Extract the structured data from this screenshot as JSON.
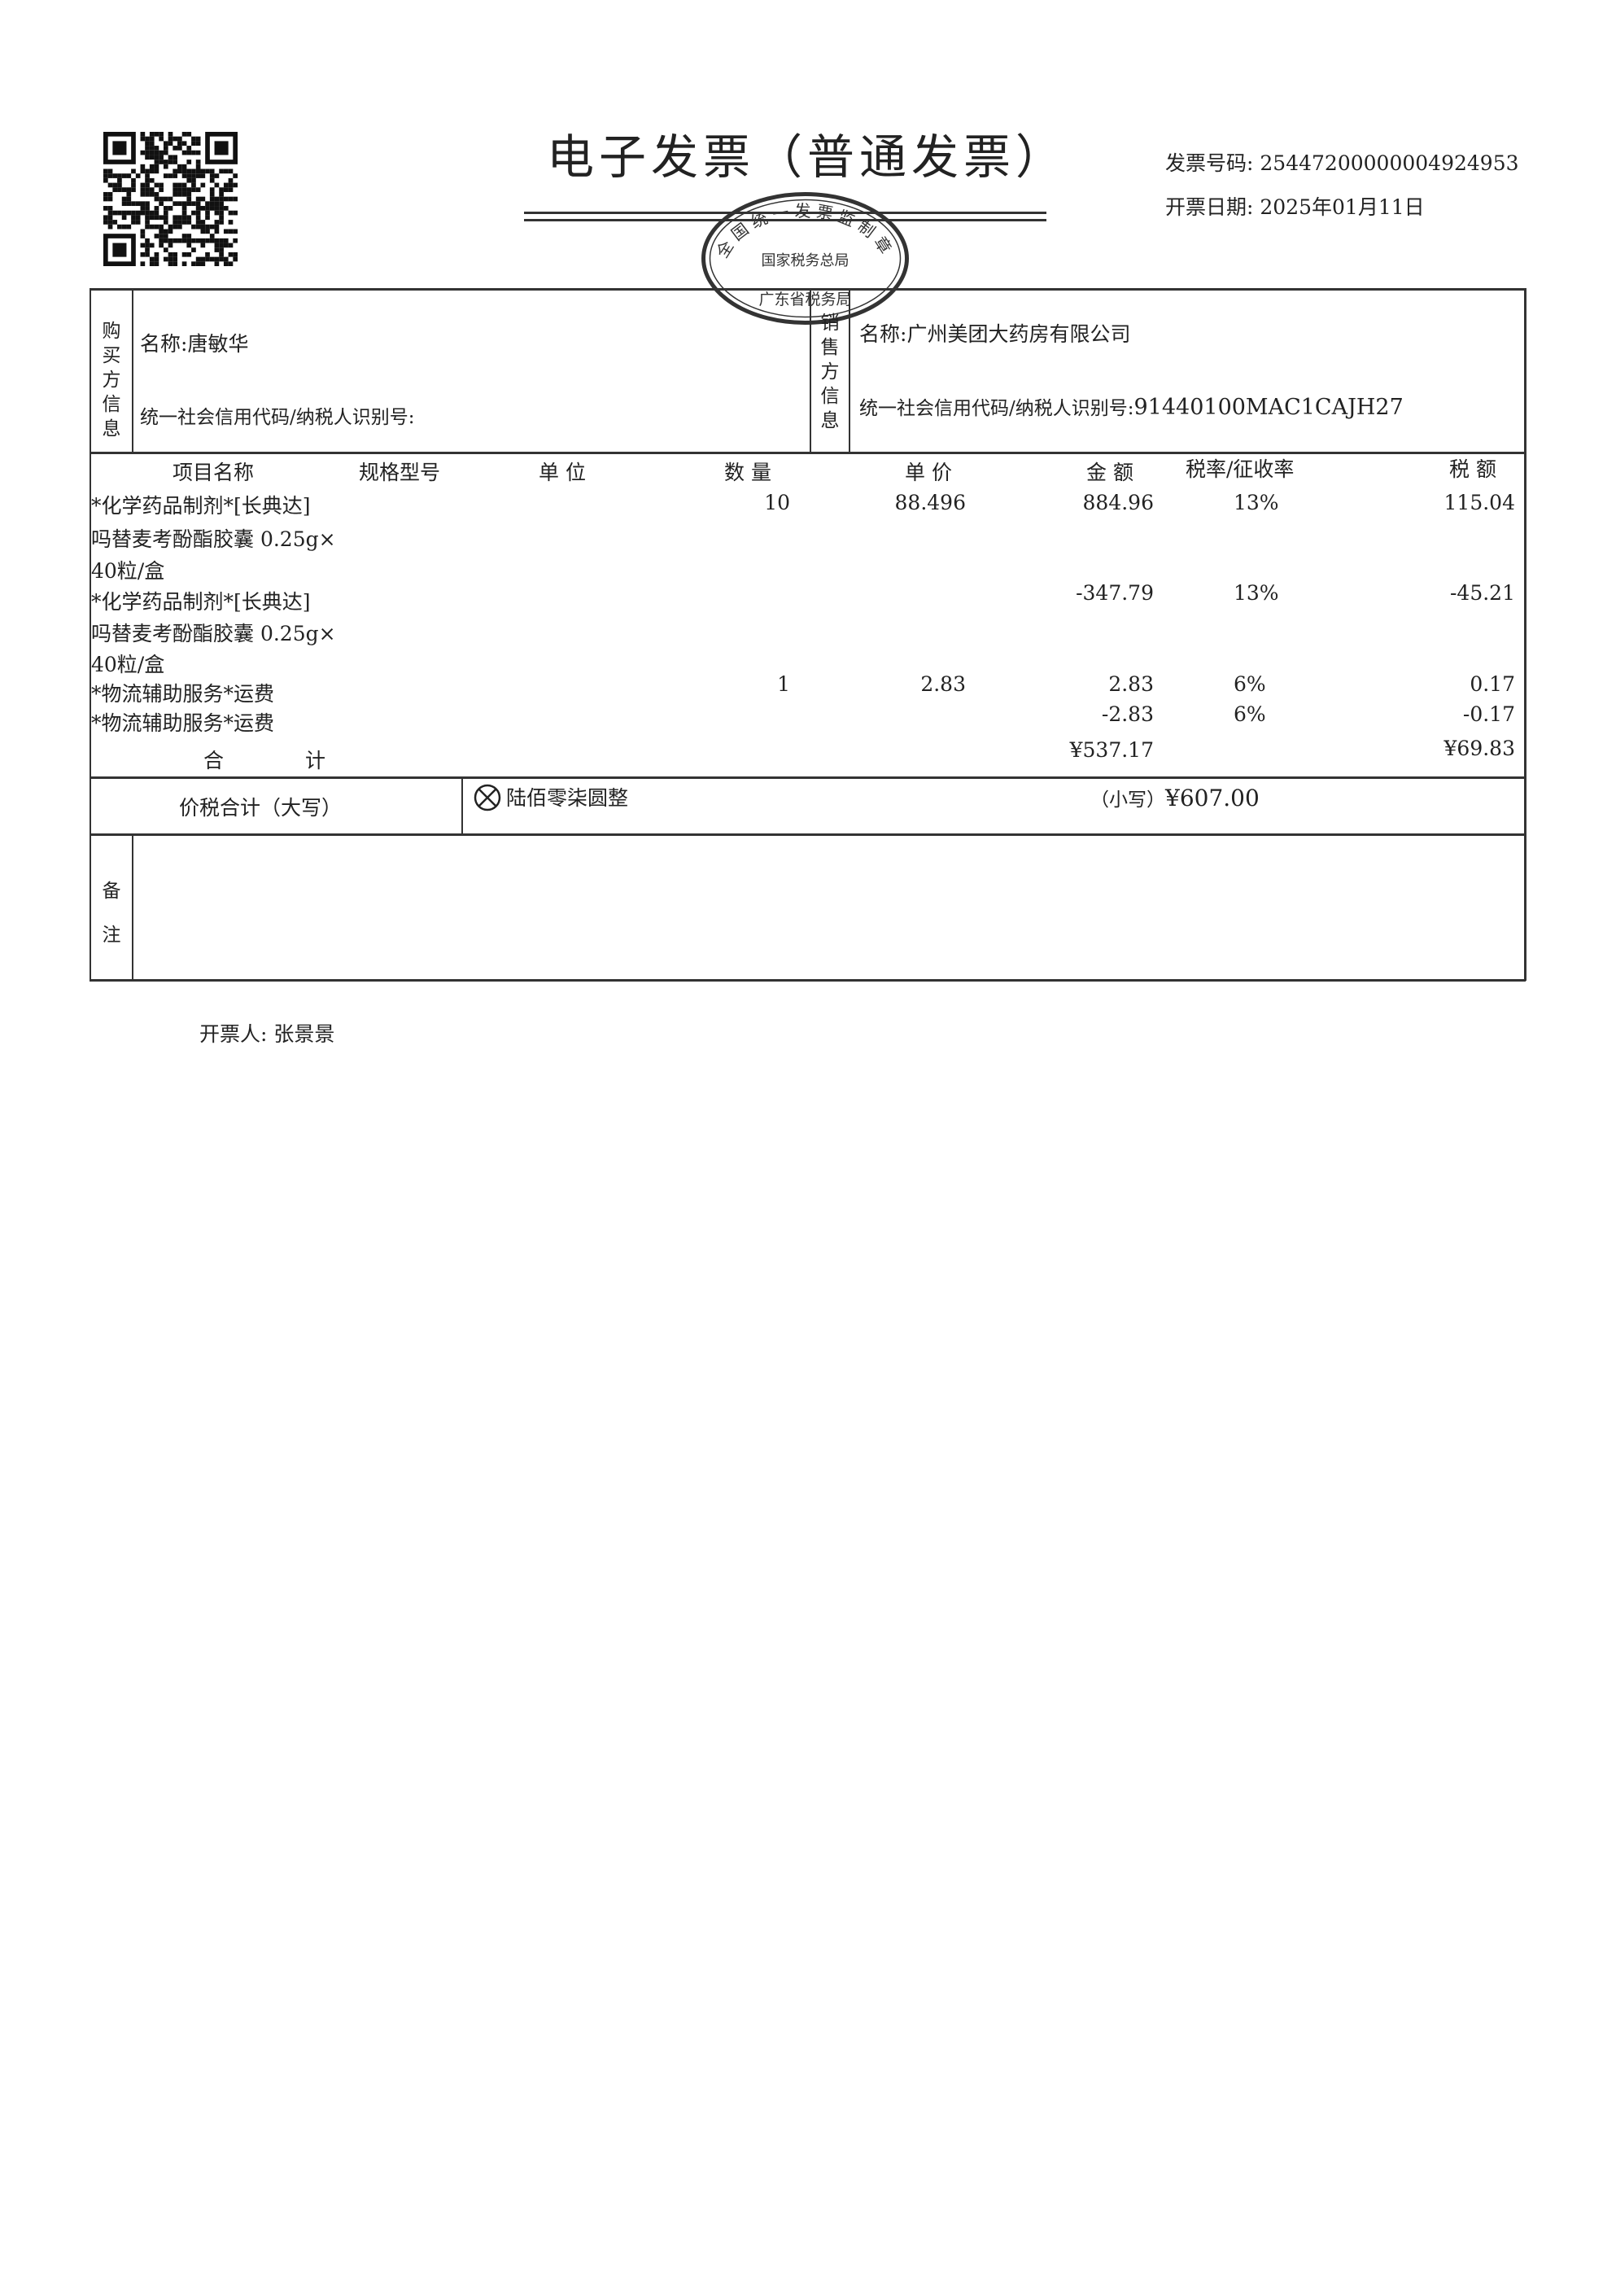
{
  "header": {
    "title": "电子发票（普通发票）",
    "invoice_number_label": "发票号码:",
    "invoice_number": "25447200000004924953",
    "issue_date_label": "开票日期:",
    "issue_date": "2025年01月11日",
    "stamp": {
      "top_text": "全国统一发票监制章",
      "middle_text": "国家税务总局",
      "bottom_text": "广东省税务局",
      "color": "#333333"
    }
  },
  "buyer": {
    "section_label": "购买方信息",
    "name_label": "名称:",
    "name": "唐敏华",
    "tax_id_label": "统一社会信用代码/纳税人识别号:",
    "tax_id": ""
  },
  "seller": {
    "section_label": "销售方信息",
    "name_label": "名称:",
    "name": "广州美团大药房有限公司",
    "tax_id_label": "统一社会信用代码/纳税人识别号:",
    "tax_id": "91440100MAC1CAJH27"
  },
  "items_table": {
    "columns": [
      "项目名称",
      "规格型号",
      "单 位",
      "数 量",
      "单 价",
      "金 额",
      "税率/征收率",
      "税 额"
    ],
    "name_lines": [
      "*化学药品制剂*[长典达]",
      "吗替麦考酚酯胶囊 0.25g×",
      "40粒/盒",
      "*化学药品制剂*[长典达]",
      "吗替麦考酚酯胶囊 0.25g×",
      "40粒/盒",
      "*物流辅助服务*运费",
      "*物流辅助服务*运费"
    ],
    "rows": [
      {
        "quantity": "10",
        "unit_price": "88.496",
        "amount": "884.96",
        "tax_rate": "13%",
        "tax": "115.04"
      },
      {
        "quantity": "",
        "unit_price": "",
        "amount": "-347.79",
        "tax_rate": "13%",
        "tax": "-45.21"
      },
      {
        "quantity": "1",
        "unit_price": "2.83",
        "amount": "2.83",
        "tax_rate": "6%",
        "tax": "0.17"
      },
      {
        "quantity": "",
        "unit_price": "",
        "amount": "-2.83",
        "tax_rate": "6%",
        "tax": "-0.17"
      }
    ],
    "subtotal_label": "合　　　　计",
    "subtotal_amount": "¥537.17",
    "subtotal_tax": "¥69.83"
  },
  "total": {
    "label": "价税合计（大写）",
    "icon": "circle-x-icon",
    "amount_words": "陆佰零柒圆整",
    "small_label": "（小写）",
    "amount": "¥607.00"
  },
  "remarks": {
    "label": "备注",
    "content": ""
  },
  "footer": {
    "issuer_label": "开票人:",
    "issuer": "张景景"
  }
}
